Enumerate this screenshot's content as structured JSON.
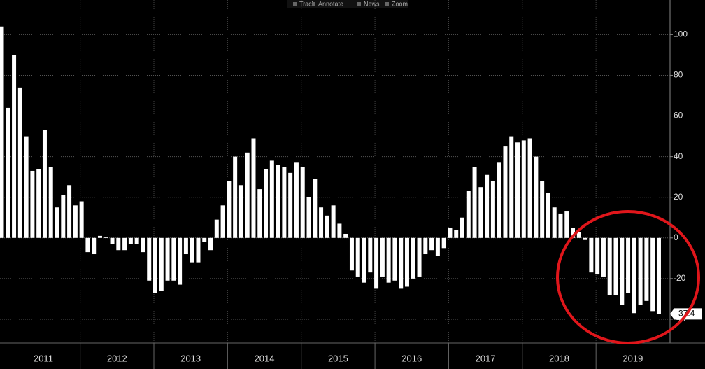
{
  "toolbar": [
    "Track",
    "Annotate",
    "News",
    "Zoom"
  ],
  "chart_data": {
    "type": "bar",
    "x_labels": [
      "2011",
      "2012",
      "2013",
      "2014",
      "2015",
      "2016",
      "2017",
      "2018",
      "2019"
    ],
    "values": [
      104,
      64,
      90,
      74,
      50,
      33,
      34,
      53,
      35,
      15,
      21,
      26,
      16,
      18,
      -7,
      -8,
      1,
      0.5,
      -3,
      -6,
      -6,
      -3,
      -3,
      -7,
      -21,
      -27,
      -26,
      -21,
      -21,
      -23,
      -8,
      -12,
      -12,
      -2,
      -6,
      9,
      16,
      28,
      40,
      26,
      42,
      49,
      24,
      34,
      38,
      36,
      35,
      32,
      37,
      35,
      20,
      29,
      15,
      11,
      16,
      7,
      2,
      -16,
      -19,
      -22,
      -17,
      -25,
      -19,
      -22,
      -21,
      -25,
      -24,
      -20,
      -19,
      -8,
      -6,
      -9,
      -5,
      5,
      4,
      10,
      23,
      35,
      25,
      31,
      28,
      37,
      45,
      50,
      47,
      48,
      49,
      40,
      28,
      22,
      15,
      12,
      13,
      5,
      3,
      -1,
      -17,
      -18,
      -19,
      -28,
      -28,
      -33,
      -27,
      -37,
      -33,
      -31,
      -36,
      -37.4
    ],
    "color": "#ffffff",
    "ylim": [
      -50,
      117
    ],
    "yticks": [
      -40,
      -20,
      0,
      20,
      40,
      60,
      80,
      100
    ],
    "grid": true
  }
}
